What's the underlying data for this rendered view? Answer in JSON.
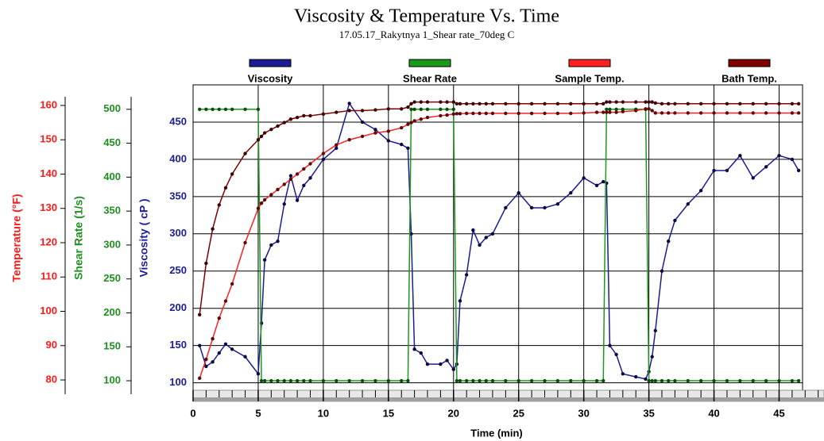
{
  "chart_data": {
    "type": "line",
    "title": "Viscosity & Temperature Vs. Time",
    "subtitle": "17.05.17_Rakytnya 1_Shear rate_70deg C",
    "xlabel": "Time (min)",
    "xlim": [
      0,
      46.8
    ],
    "xticks": [
      0,
      5,
      10,
      15,
      20,
      25,
      30,
      35,
      40,
      45
    ],
    "ylabel": "Viscosity ( cP )",
    "ylim": [
      90,
      500
    ],
    "yticks": [
      100,
      150,
      200,
      250,
      300,
      350,
      400,
      450
    ],
    "y_color": "#1c1c96",
    "y2label": "Shear Rate (1/s)",
    "y2lim": [
      86,
      536
    ],
    "y2ticks": [
      100,
      150,
      200,
      250,
      300,
      350,
      400,
      450,
      500
    ],
    "y2_color": "#1f8f1f",
    "y3label": "Temperature (°F)",
    "y3lim": [
      77,
      166
    ],
    "y3ticks": [
      80,
      90,
      100,
      110,
      120,
      130,
      140,
      150,
      160
    ],
    "y3_color": "#ff1a1a",
    "grid": true,
    "x": [
      0.5,
      1,
      1.5,
      2,
      2.5,
      3,
      4,
      5,
      5.25,
      5.5,
      6,
      6.5,
      7,
      7.5,
      8,
      8.5,
      9,
      10,
      11,
      12,
      13,
      14,
      15,
      16,
      16.5,
      16.75,
      17,
      17.5,
      18,
      19,
      19.5,
      20,
      20.25,
      20.5,
      21,
      21.5,
      22,
      22.5,
      23,
      24,
      25,
      26,
      27,
      28,
      29,
      30,
      31,
      31.5,
      31.75,
      32,
      32.5,
      33,
      34,
      34.75,
      35,
      35.25,
      35.5,
      36,
      36.5,
      37,
      38,
      39,
      40,
      41,
      42,
      43,
      44,
      45,
      46,
      46.5
    ],
    "series": [
      {
        "name": "Viscosity",
        "color": "#1c1c96",
        "marker_color": "#0a0a40",
        "axis": "y",
        "values": [
          150,
          122,
          128,
          140,
          152,
          145,
          135,
          112,
          180,
          265,
          285,
          290,
          340,
          378,
          345,
          365,
          375,
          400,
          415,
          475,
          450,
          440,
          425,
          420,
          415,
          300,
          145,
          140,
          125,
          125,
          130,
          118,
          125,
          210,
          245,
          305,
          285,
          295,
          300,
          335,
          355,
          335,
          335,
          340,
          355,
          375,
          365,
          370,
          368,
          150,
          138,
          112,
          108,
          105,
          115,
          135,
          170,
          250,
          290,
          318,
          340,
          358,
          385,
          385,
          405,
          375,
          390,
          405,
          400,
          385
        ]
      },
      {
        "name": "Shear Rate",
        "color": "#1a9a1a",
        "marker_color": "#0b4d0b",
        "axis": "y2",
        "values": [
          500,
          500,
          500,
          500,
          500,
          500,
          500,
          500,
          100,
          100,
          100,
          100,
          100,
          100,
          100,
          100,
          100,
          100,
          100,
          100,
          100,
          100,
          100,
          100,
          100,
          500,
          500,
          500,
          500,
          500,
          500,
          500,
          100,
          100,
          100,
          100,
          100,
          100,
          100,
          100,
          100,
          100,
          100,
          100,
          100,
          100,
          100,
          100,
          500,
          500,
          500,
          500,
          500,
          500,
          100,
          100,
          100,
          100,
          100,
          100,
          100,
          100,
          100,
          100,
          100,
          100,
          100,
          100,
          100,
          100
        ]
      },
      {
        "name": "Sample Temp.",
        "color": "#ff2020",
        "marker_color": "#5a0a0a",
        "axis": "y3",
        "values": [
          80.5,
          86,
          92,
          98,
          103,
          108,
          120,
          130,
          131.5,
          132.5,
          134,
          135.5,
          137,
          138.5,
          140,
          141.5,
          143,
          146,
          148.5,
          150,
          151,
          152,
          152.5,
          153.5,
          154.5,
          155,
          155.5,
          156,
          156.5,
          157,
          157.2,
          157.5,
          157.6,
          157.6,
          157.7,
          157.7,
          157.7,
          157.7,
          157.7,
          157.7,
          157.7,
          157.7,
          157.7,
          157.7,
          157.7,
          157.8,
          158,
          158,
          158,
          158,
          158,
          158.2,
          158.5,
          159,
          159,
          158.5,
          157.8,
          157.8,
          157.8,
          157.8,
          157.8,
          157.8,
          157.8,
          157.8,
          157.8,
          157.8,
          157.8,
          157.8,
          157.8,
          157.8
        ]
      },
      {
        "name": "Bath Temp.",
        "color": "#800000",
        "marker_color": "#3a0505",
        "axis": "y3",
        "values": [
          99,
          114,
          124,
          131,
          136,
          140,
          146,
          150,
          151,
          152,
          153,
          154,
          155,
          156,
          156.5,
          157,
          157,
          157.5,
          158,
          158.5,
          158.5,
          158.7,
          159,
          159,
          159.5,
          160.5,
          161,
          161,
          161,
          161,
          161,
          161,
          160.5,
          160.5,
          160.5,
          160.5,
          160.5,
          160.5,
          160.5,
          160.5,
          160.5,
          160.5,
          160.5,
          160.5,
          160.5,
          160.5,
          160.5,
          160.5,
          161,
          161,
          161,
          161,
          161,
          161,
          161,
          161,
          160.7,
          160.5,
          160.5,
          160.5,
          160.5,
          160.5,
          160.5,
          160.5,
          160.5,
          160.5,
          160.5,
          160.5,
          160.5,
          160.5
        ]
      }
    ]
  }
}
